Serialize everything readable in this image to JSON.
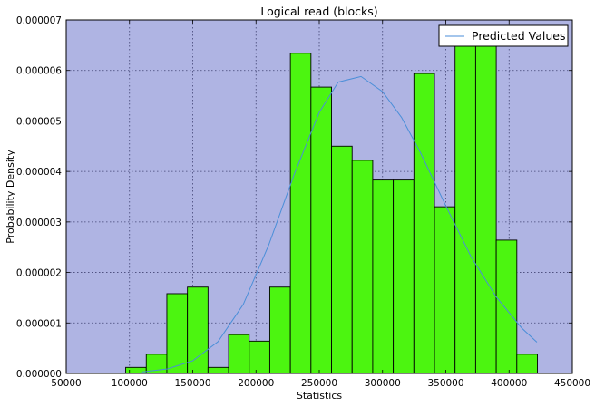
{
  "chart_data": {
    "type": "bar",
    "title": "Logical read (blocks)",
    "xlabel": "Statistics",
    "ylabel": "Probability Density",
    "xlim": [
      50000,
      450000
    ],
    "ylim": [
      0,
      7e-06
    ],
    "xticks": [
      50000,
      100000,
      150000,
      200000,
      250000,
      300000,
      350000,
      400000,
      450000
    ],
    "xtick_labels": [
      "50000",
      "100000",
      "150000",
      "200000",
      "250000",
      "300000",
      "350000",
      "400000",
      "450000"
    ],
    "yticks": [
      0,
      1e-06,
      2e-06,
      3e-06,
      4e-06,
      5e-06,
      6e-06,
      7e-06
    ],
    "ytick_labels": [
      "0.000000",
      "0.000001",
      "0.000002",
      "0.000003",
      "0.000004",
      "0.000005",
      "0.000006",
      "0.000007"
    ],
    "grid": true,
    "background_color": "#afb4e3",
    "bar_color": "#4cf510",
    "line_color": "#4a8ed8",
    "legend": {
      "position": "upper right",
      "entries": [
        "Predicted Values"
      ]
    },
    "histogram": {
      "bin_edges": [
        97000,
        113270,
        129540,
        145810,
        162080,
        178350,
        194620,
        210890,
        227160,
        243430,
        259700,
        275970,
        292240,
        308510,
        324780,
        341050,
        357320,
        373590,
        389860,
        406130,
        422400
      ],
      "density": [
        1.2e-07,
        3.8e-07,
        1.58e-06,
        1.71e-06,
        1.2e-07,
        7.7e-07,
        6.4e-07,
        1.71e-06,
        6.34e-06,
        5.67e-06,
        4.5e-06,
        4.22e-06,
        3.83e-06,
        3.83e-06,
        5.94e-06,
        3.3e-06,
        6.61e-06,
        6.61e-06,
        2.64e-06,
        3.8e-07
      ]
    },
    "series": [
      {
        "name": "Predicted Values",
        "type": "line",
        "x": [
          110000,
          130000,
          150000,
          170000,
          190000,
          210000,
          230000,
          250000,
          265000,
          283000,
          300000,
          315000,
          330000,
          350000,
          370000,
          390000,
          410000,
          422000
        ],
        "y": [
          3e-08,
          9e-08,
          2.5e-07,
          6.3e-07,
          1.37e-06,
          2.54e-06,
          3.93e-06,
          5.17e-06,
          5.77e-06,
          5.88e-06,
          5.58e-06,
          5.07e-06,
          4.37e-06,
          3.32e-06,
          2.31e-06,
          1.51e-06,
          9e-07,
          6.2e-07
        ]
      }
    ]
  }
}
